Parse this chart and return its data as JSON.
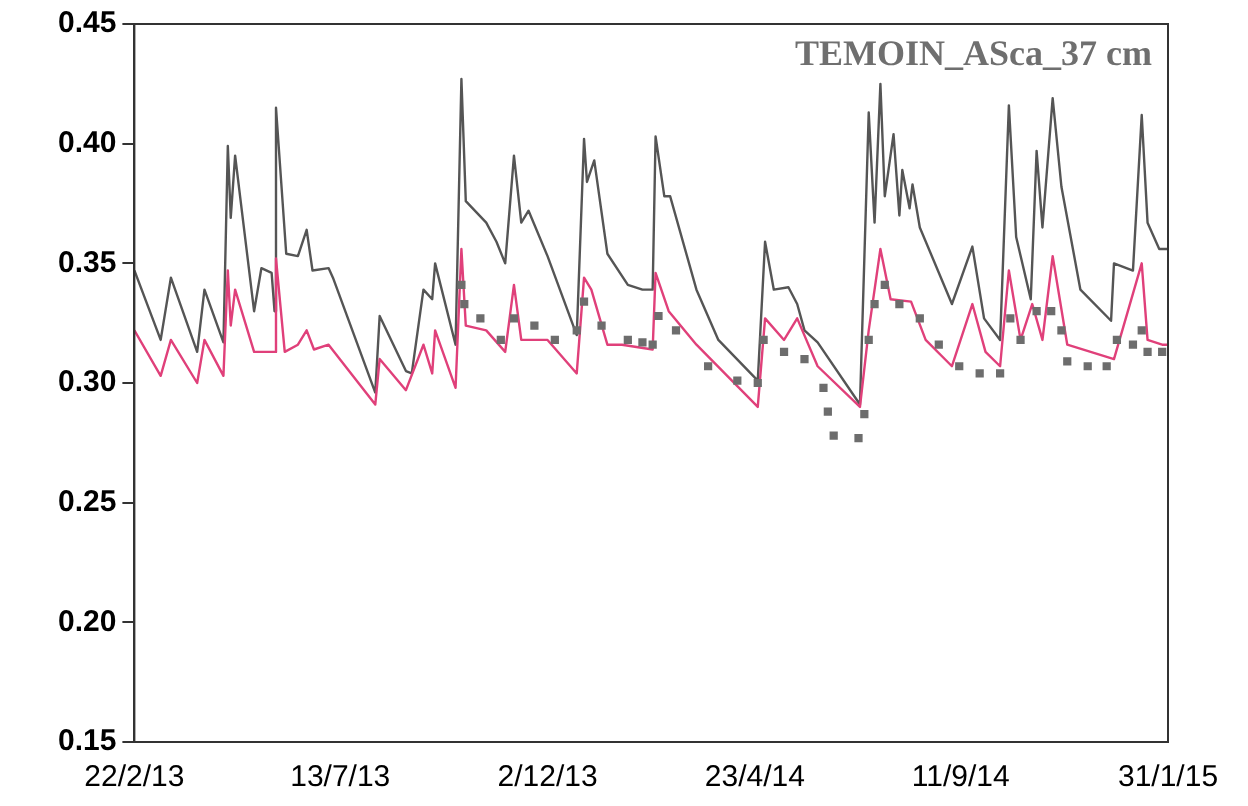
{
  "chart_data": {
    "type": "line",
    "title": "TEMOIN_ASca_37 cm",
    "marker": "none",
    "line_style": "solid",
    "grid": false,
    "legend": false,
    "xlim": [
      "2013-02-22",
      "2015-01-31"
    ],
    "xticks": [
      {
        "value": "2013-02-22",
        "label": "22/2/13"
      },
      {
        "value": "2013-07-13",
        "label": "13/7/13"
      },
      {
        "value": "2013-12-02",
        "label": "2/12/13"
      },
      {
        "value": "2014-04-23",
        "label": "23/4/14"
      },
      {
        "value": "2014-09-11",
        "label": "11/9/14"
      },
      {
        "value": "2015-01-31",
        "label": "31/1/15"
      }
    ],
    "ylim": [
      0.15,
      0.45
    ],
    "yticks": [
      0.15,
      {
        "value": 0.2,
        "label": "0.20"
      },
      0.25,
      {
        "value": 0.3,
        "label": "0.30"
      },
      0.35,
      {
        "value": 0.4,
        "label": "0.40"
      },
      0.45
    ],
    "series": [
      {
        "color": "#555555",
        "x": [
          "2013-02-22",
          "2013-03-12",
          "2013-03-19",
          "2013-04-06",
          "2013-04-11",
          "2013-04-24",
          "2013-04-27",
          "2013-04-29",
          "2013-05-02",
          "2013-05-15",
          "2013-05-20",
          "2013-05-27",
          "2013-05-29",
          "2013-05-30",
          "2013-06-06",
          "2013-06-14",
          "2013-06-20",
          "2013-06-24",
          "2013-07-05",
          "2013-07-08",
          "2013-08-06",
          "2013-08-09",
          "2013-08-27",
          "2013-08-31",
          "2013-09-08",
          "2013-09-14",
          "2013-09-16",
          "2013-09-30",
          "2013-10-04",
          "2013-10-07",
          "2013-10-21",
          "2013-10-28",
          "2013-11-03",
          "2013-11-09",
          "2013-11-14",
          "2013-11-19",
          "2013-12-02",
          "2013-12-22",
          "2013-12-27",
          "2013-12-29",
          "2014-01-03",
          "2014-01-12",
          "2014-01-26",
          "2014-02-05",
          "2014-02-12",
          "2014-02-14",
          "2014-02-20",
          "2014-02-24",
          "2014-03-14",
          "2014-03-29",
          "2014-04-25",
          "2014-04-30",
          "2014-05-06",
          "2014-05-16",
          "2014-05-22",
          "2014-05-27",
          "2014-06-05",
          "2014-07-04",
          "2014-07-10",
          "2014-07-14",
          "2014-07-18",
          "2014-07-21",
          "2014-07-27",
          "2014-07-31",
          "2014-08-02",
          "2014-08-07",
          "2014-08-09",
          "2014-08-14",
          "2014-09-05",
          "2014-09-19",
          "2014-09-27",
          "2014-10-08",
          "2014-10-14",
          "2014-10-19",
          "2014-10-29",
          "2014-11-02",
          "2014-11-06",
          "2014-11-13",
          "2014-11-19",
          "2014-12-02",
          "2014-12-23",
          "2014-12-25",
          "2015-01-07",
          "2015-01-13",
          "2015-01-17",
          "2015-01-25",
          "2015-01-31"
        ],
        "values": [
          0.347,
          0.318,
          0.344,
          0.313,
          0.339,
          0.317,
          0.399,
          0.369,
          0.395,
          0.33,
          0.348,
          0.346,
          0.33,
          0.415,
          0.354,
          0.353,
          0.364,
          0.347,
          0.348,
          0.344,
          0.296,
          0.328,
          0.305,
          0.304,
          0.339,
          0.335,
          0.35,
          0.316,
          0.427,
          0.376,
          0.367,
          0.359,
          0.35,
          0.395,
          0.367,
          0.372,
          0.353,
          0.32,
          0.402,
          0.384,
          0.393,
          0.354,
          0.341,
          0.339,
          0.339,
          0.403,
          0.378,
          0.378,
          0.339,
          0.318,
          0.301,
          0.359,
          0.339,
          0.34,
          0.333,
          0.322,
          0.317,
          0.291,
          0.413,
          0.367,
          0.425,
          0.378,
          0.404,
          0.37,
          0.389,
          0.373,
          0.383,
          0.365,
          0.333,
          0.357,
          0.327,
          0.318,
          0.416,
          0.361,
          0.335,
          0.397,
          0.365,
          0.419,
          0.382,
          0.339,
          0.326,
          0.35,
          0.347,
          0.412,
          0.367,
          0.356,
          0.356
        ]
      },
      {
        "color": "#e0407a",
        "x": [
          "2013-02-22",
          "2013-03-12",
          "2013-03-19",
          "2013-04-06",
          "2013-04-11",
          "2013-04-24",
          "2013-04-27",
          "2013-04-29",
          "2013-05-02",
          "2013-05-15",
          "2013-05-29",
          "2013-05-30",
          "2013-06-05",
          "2013-06-14",
          "2013-06-20",
          "2013-06-25",
          "2013-07-05",
          "2013-08-06",
          "2013-08-09",
          "2013-08-27",
          "2013-09-08",
          "2013-09-14",
          "2013-09-16",
          "2013-09-30",
          "2013-10-04",
          "2013-10-07",
          "2013-10-21",
          "2013-11-03",
          "2013-11-09",
          "2013-11-14",
          "2013-12-02",
          "2013-12-22",
          "2013-12-27",
          "2014-01-01",
          "2014-01-12",
          "2014-01-22",
          "2014-02-12",
          "2014-02-14",
          "2014-02-23",
          "2014-03-14",
          "2014-04-25",
          "2014-04-30",
          "2014-05-13",
          "2014-05-22",
          "2014-06-05",
          "2014-07-04",
          "2014-07-10",
          "2014-07-18",
          "2014-07-25",
          "2014-08-08",
          "2014-08-18",
          "2014-09-05",
          "2014-09-19",
          "2014-09-28",
          "2014-10-08",
          "2014-10-14",
          "2014-10-22",
          "2014-10-30",
          "2014-11-06",
          "2014-11-13",
          "2014-11-23",
          "2014-12-25",
          "2015-01-13",
          "2015-01-17",
          "2015-01-27",
          "2015-01-31"
        ],
        "values": [
          0.322,
          0.303,
          0.318,
          0.3,
          0.318,
          0.303,
          0.347,
          0.324,
          0.339,
          0.313,
          0.313,
          0.352,
          0.313,
          0.316,
          0.322,
          0.314,
          0.316,
          0.291,
          0.31,
          0.297,
          0.316,
          0.304,
          0.322,
          0.298,
          0.356,
          0.324,
          0.322,
          0.313,
          0.341,
          0.318,
          0.318,
          0.304,
          0.344,
          0.339,
          0.316,
          0.316,
          0.314,
          0.346,
          0.33,
          0.316,
          0.29,
          0.327,
          0.318,
          0.327,
          0.307,
          0.29,
          0.322,
          0.356,
          0.335,
          0.334,
          0.318,
          0.307,
          0.333,
          0.313,
          0.307,
          0.347,
          0.318,
          0.333,
          0.318,
          0.353,
          0.316,
          0.31,
          0.35,
          0.318,
          0.316,
          0.316
        ]
      },
      {
        "type": "scatter",
        "marker": "square",
        "color": "#6d6d6d",
        "x": [
          "2013-10-04",
          "2013-10-06",
          "2013-10-17",
          "2013-10-31",
          "2013-11-09",
          "2013-11-23",
          "2013-12-07",
          "2013-12-22",
          "2013-12-27",
          "2014-01-08",
          "2014-01-26",
          "2014-02-05",
          "2014-02-12",
          "2014-02-16",
          "2014-02-28",
          "2014-03-22",
          "2014-04-11",
          "2014-04-25",
          "2014-04-29",
          "2014-05-13",
          "2014-05-27",
          "2014-06-09",
          "2014-06-12",
          "2014-06-16",
          "2014-07-03",
          "2014-07-07",
          "2014-07-10",
          "2014-07-14",
          "2014-07-21",
          "2014-07-31",
          "2014-08-14",
          "2014-08-27",
          "2014-09-10",
          "2014-09-24",
          "2014-10-08",
          "2014-10-15",
          "2014-10-22",
          "2014-11-02",
          "2014-11-12",
          "2014-11-19",
          "2014-11-23",
          "2014-12-07",
          "2014-12-20",
          "2014-12-27",
          "2015-01-07",
          "2015-01-13",
          "2015-01-17",
          "2015-01-27"
        ],
        "values": [
          0.341,
          0.333,
          0.327,
          0.318,
          0.327,
          0.324,
          0.318,
          0.322,
          0.334,
          0.324,
          0.318,
          0.317,
          0.316,
          0.328,
          0.322,
          0.307,
          0.301,
          0.3,
          0.318,
          0.313,
          0.31,
          0.298,
          0.288,
          0.278,
          0.277,
          0.287,
          0.318,
          0.333,
          0.341,
          0.333,
          0.327,
          0.316,
          0.307,
          0.304,
          0.304,
          0.327,
          0.318,
          0.33,
          0.33,
          0.322,
          0.309,
          0.307,
          0.307,
          0.318,
          0.316,
          0.322,
          0.313,
          0.313
        ]
      }
    ]
  }
}
